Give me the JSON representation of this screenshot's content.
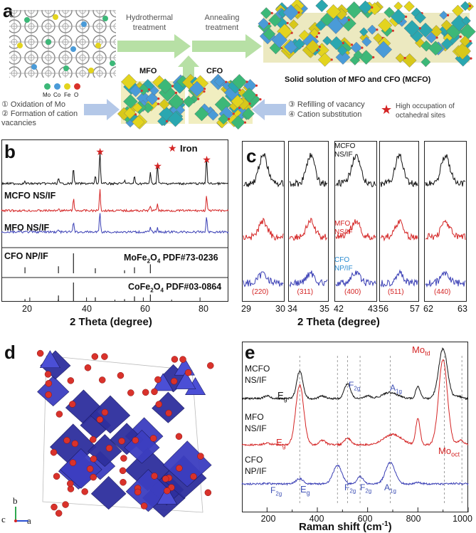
{
  "panel_a": {
    "letter": "a",
    "legend_elements": [
      "Mo",
      "Co",
      "Fe",
      "O"
    ],
    "arrow1": "Hydrothermal treatment",
    "arrow2": "Annealing treatment",
    "solid_solution": "Solid solution of MFO and CFO (MCFO)",
    "mfo": "MFO",
    "cfo": "CFO",
    "step1": "① Oxidation of Mo",
    "step2": "② Formation of cation vacancies",
    "step3": "③ Refilling of vacancy",
    "step4": "④ Cation substitution",
    "star_note": "High occupation of octahedral sites",
    "colors": {
      "mo": "#3cb878",
      "co": "#4a9bd8",
      "fe": "#e3d41e",
      "o": "#d9322b"
    }
  },
  "panel_b": {
    "letter": "b",
    "legend": "Iron",
    "samples": [
      "MCFO NS/IF",
      "MFO NS/IF",
      "CFO NP/IF"
    ],
    "ref1_text": "MoFe",
    "ref1_sub1": "2",
    "ref1_mid": "O",
    "ref1_sub2": "4",
    "ref1_pdf": " PDF#73-0236",
    "ref2_text": "CoFe",
    "ref2_sub1": "2",
    "ref2_mid": "O",
    "ref2_sub2": "4",
    "ref2_pdf": " PDF#03-0864",
    "xlabel": "2 Theta (degree)",
    "xticks": [
      "20",
      "40",
      "60",
      "80"
    ]
  },
  "panel_c": {
    "letter": "c",
    "sample_labels": [
      "MCFO NS/IF",
      "MFO NS/IF",
      "CFO NP/IF"
    ],
    "planes": [
      "(220)",
      "(311)",
      "(400)",
      "(511)",
      "(440)"
    ],
    "ticks": [
      [
        "29",
        "30"
      ],
      [
        "34",
        "35"
      ],
      [
        "42",
        "43"
      ],
      [
        "56",
        "57"
      ],
      [
        "62",
        "63"
      ]
    ],
    "xlabel": "2 Theta (degree)"
  },
  "panel_d": {
    "letter": "d",
    "axes": {
      "b": "b",
      "c": "c",
      "a": "a"
    }
  },
  "panel_e": {
    "letter": "e",
    "samples": [
      "MCFO NS/IF",
      "MFO NS/IF",
      "CFO NP/IF"
    ],
    "peaks": {
      "mo_td": "Mo",
      "mo_td_sub": "td",
      "mo_oct": "Mo",
      "mo_oct_sub": "oct",
      "eg": "E",
      "eg_sub": "g",
      "f2g": "F",
      "f2g_sub": "2g",
      "a1g": "A",
      "a1g_sub": "1g"
    },
    "xlabel_main": "Raman shift (cm",
    "xlabel_sup": "-1",
    "xlabel_end": ")",
    "xticks": [
      "200",
      "400",
      "600",
      "800",
      "1000"
    ]
  },
  "chart_data": [
    {
      "type": "line",
      "title": "",
      "xlabel": "2 Theta (degree)",
      "ylabel": "",
      "xlim": [
        10,
        90
      ],
      "series": [
        {
          "name": "MCFO NS/IF",
          "x": [
            18.3,
            30.1,
            35.4,
            43.1,
            44.7,
            53.4,
            56.9,
            62.5,
            65.0,
            82.3
          ],
          "y": [
            0.05,
            0.15,
            0.45,
            0.2,
            0.95,
            0.1,
            0.2,
            0.3,
            0.55,
            0.75
          ]
        },
        {
          "name": "MFO NS/IF",
          "x": [
            30.1,
            35.4,
            44.7,
            62.5,
            65.0,
            82.3
          ],
          "y": [
            0.1,
            0.5,
            0.9,
            0.2,
            0.3,
            0.6
          ]
        },
        {
          "name": "CFO NP/IF",
          "x": [
            30.1,
            35.4,
            44.7,
            62.5,
            65.0,
            82.3
          ],
          "y": [
            0.1,
            0.5,
            0.95,
            0.2,
            0.2,
            0.75
          ]
        }
      ],
      "annotations": [
        "Iron peaks at 44.7, 65.0, 82.3"
      ]
    },
    {
      "type": "line",
      "title": "",
      "xlabel": "Raman shift (cm-1)",
      "ylabel": "",
      "xlim": [
        100,
        1000
      ],
      "series": [
        {
          "name": "MCFO NS/IF",
          "x": [
            200,
            330,
            420,
            520,
            600,
            690,
            800,
            900,
            960
          ],
          "y": [
            0.05,
            0.55,
            0.05,
            0.3,
            0.05,
            0.12,
            0.25,
            1.0,
            0.05
          ]
        },
        {
          "name": "MFO NS/IF",
          "x": [
            200,
            330,
            420,
            520,
            700,
            800,
            900,
            970
          ],
          "y": [
            0.02,
            0.7,
            0.05,
            0.08,
            0.12,
            0.3,
            1.0,
            0.05
          ]
        },
        {
          "name": "CFO NP/IF",
          "x": [
            200,
            330,
            480,
            570,
            690,
            800,
            950
          ],
          "y": [
            0.02,
            0.18,
            0.65,
            0.25,
            0.75,
            0.05,
            0.02
          ]
        }
      ]
    }
  ]
}
